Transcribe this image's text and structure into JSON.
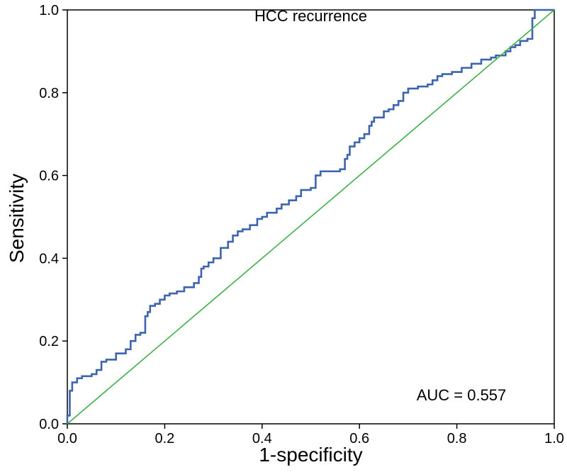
{
  "figure": {
    "title": "HCC recurrence",
    "xlabel": "1-specificity",
    "ylabel": "Sensitivity",
    "annotation": "AUC = 0.557"
  },
  "chart_data": {
    "type": "line",
    "subtype": "roc-curve",
    "title": "HCC recurrence",
    "xlabel": "1-specificity",
    "ylabel": "Sensitivity",
    "xlim": [
      0,
      1
    ],
    "ylim": [
      0,
      1
    ],
    "xticks": [
      "0.0",
      "0.2",
      "0.4",
      "0.6",
      "0.8",
      "1.0"
    ],
    "yticks": [
      "0.0",
      "0.2",
      "0.4",
      "0.6",
      "0.8",
      "1.0"
    ],
    "grid": false,
    "legend": "none",
    "annotation": "AUC = 0.557",
    "auc": 0.557,
    "colors": {
      "roc": "#3D64AF",
      "reference": "#3FAE49",
      "frame": "#000000"
    },
    "series": [
      {
        "name": "ROC curve",
        "style": "step",
        "color": "#3D64AF",
        "width": 2.6,
        "points": [
          [
            0,
            0
          ],
          [
            0.005,
            0.02
          ],
          [
            0.005,
            0.07
          ],
          [
            0.01,
            0.08
          ],
          [
            0.02,
            0.1
          ],
          [
            0.03,
            0.11
          ],
          [
            0.05,
            0.115
          ],
          [
            0.06,
            0.12
          ],
          [
            0.07,
            0.13
          ],
          [
            0.08,
            0.15
          ],
          [
            0.1,
            0.155
          ],
          [
            0.12,
            0.17
          ],
          [
            0.13,
            0.18
          ],
          [
            0.14,
            0.2
          ],
          [
            0.15,
            0.215
          ],
          [
            0.16,
            0.22
          ],
          [
            0.165,
            0.26
          ],
          [
            0.17,
            0.27
          ],
          [
            0.18,
            0.285
          ],
          [
            0.19,
            0.29
          ],
          [
            0.2,
            0.3
          ],
          [
            0.21,
            0.31
          ],
          [
            0.225,
            0.315
          ],
          [
            0.24,
            0.32
          ],
          [
            0.26,
            0.33
          ],
          [
            0.27,
            0.34
          ],
          [
            0.275,
            0.355
          ],
          [
            0.28,
            0.375
          ],
          [
            0.29,
            0.38
          ],
          [
            0.3,
            0.39
          ],
          [
            0.315,
            0.4
          ],
          [
            0.33,
            0.425
          ],
          [
            0.34,
            0.44
          ],
          [
            0.35,
            0.455
          ],
          [
            0.36,
            0.465
          ],
          [
            0.375,
            0.47
          ],
          [
            0.39,
            0.48
          ],
          [
            0.4,
            0.495
          ],
          [
            0.41,
            0.5
          ],
          [
            0.43,
            0.51
          ],
          [
            0.44,
            0.52
          ],
          [
            0.455,
            0.53
          ],
          [
            0.47,
            0.54
          ],
          [
            0.48,
            0.55
          ],
          [
            0.5,
            0.565
          ],
          [
            0.51,
            0.57
          ],
          [
            0.52,
            0.6
          ],
          [
            0.53,
            0.61
          ],
          [
            0.56,
            0.61
          ],
          [
            0.57,
            0.615
          ],
          [
            0.575,
            0.64
          ],
          [
            0.58,
            0.65
          ],
          [
            0.59,
            0.67
          ],
          [
            0.6,
            0.68
          ],
          [
            0.61,
            0.69
          ],
          [
            0.62,
            0.7
          ],
          [
            0.625,
            0.72
          ],
          [
            0.63,
            0.73
          ],
          [
            0.65,
            0.74
          ],
          [
            0.66,
            0.755
          ],
          [
            0.67,
            0.76
          ],
          [
            0.68,
            0.77
          ],
          [
            0.69,
            0.78
          ],
          [
            0.7,
            0.8
          ],
          [
            0.72,
            0.81
          ],
          [
            0.74,
            0.815
          ],
          [
            0.75,
            0.82
          ],
          [
            0.76,
            0.83
          ],
          [
            0.77,
            0.84
          ],
          [
            0.79,
            0.845
          ],
          [
            0.81,
            0.85
          ],
          [
            0.83,
            0.86
          ],
          [
            0.85,
            0.87
          ],
          [
            0.87,
            0.88
          ],
          [
            0.88,
            0.885
          ],
          [
            0.9,
            0.89
          ],
          [
            0.91,
            0.9
          ],
          [
            0.92,
            0.91
          ],
          [
            0.93,
            0.915
          ],
          [
            0.945,
            0.925
          ],
          [
            0.955,
            0.93
          ],
          [
            0.96,
            0.98
          ],
          [
            0.965,
            1.0
          ],
          [
            1.0,
            1.0
          ]
        ]
      },
      {
        "name": "Reference line",
        "style": "line",
        "color": "#3FAE49",
        "width": 1.6,
        "points": [
          [
            0,
            0
          ],
          [
            1,
            1
          ]
        ]
      }
    ]
  }
}
